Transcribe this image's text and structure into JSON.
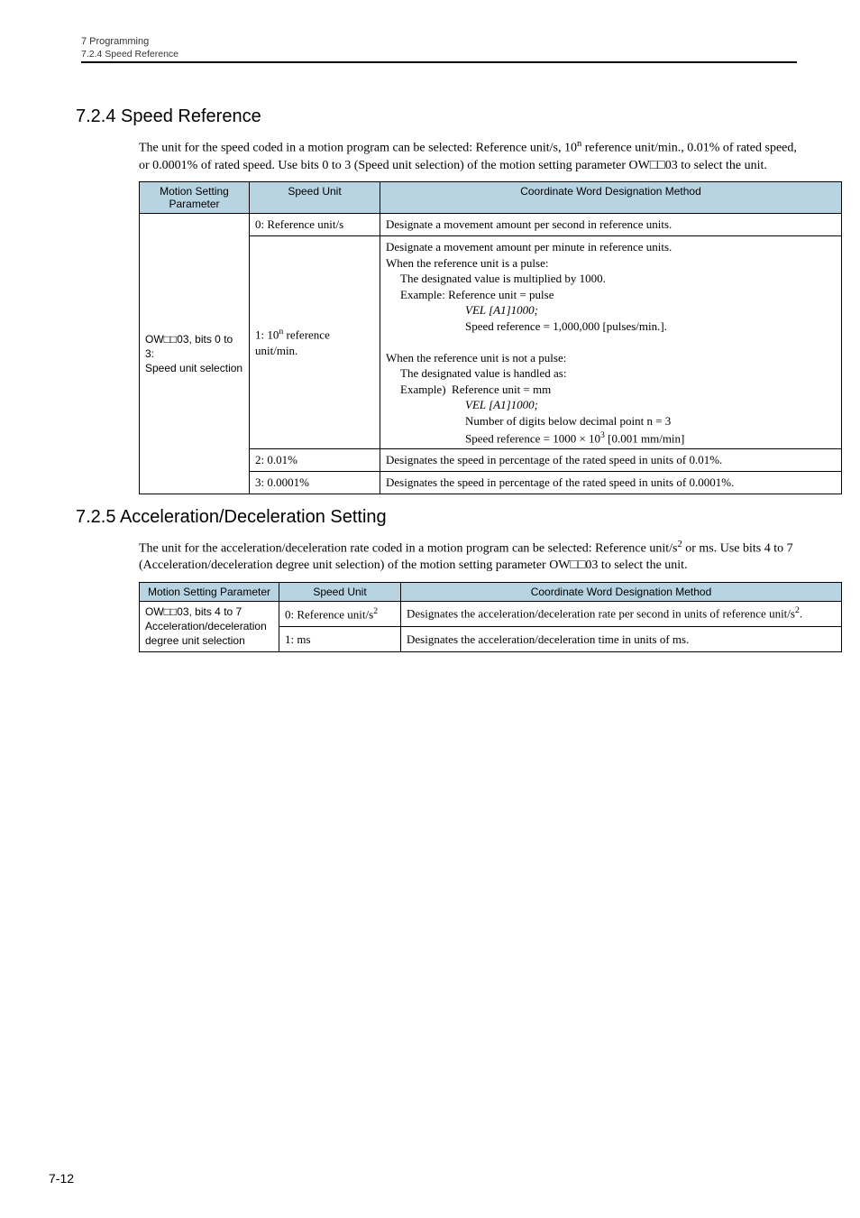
{
  "header": {
    "chapter": "7  Programming",
    "sub": "7.2.4  Speed Reference"
  },
  "section1": {
    "num": "7.2.4",
    "title": "Speed Reference",
    "para_html": "The unit for the speed coded in a motion program can be selected: Reference unit/s, 10<sup>n</sup> reference unit/min., 0.01% of rated speed, or 0.0001% of rated speed. Use bits 0 to 3 (Speed unit selection) of the motion setting parameter OW□□03 to select the unit."
  },
  "table1": {
    "headers": [
      "Motion Setting Parameter",
      "Speed Unit",
      "Coordinate Word Designation Method"
    ],
    "col1_html": "OW□□03, bits 0 to 3:<br>Speed unit selection",
    "rows": [
      {
        "unit": "0: Reference unit/s",
        "desc": "Designate a movement amount per second in reference units."
      },
      {
        "unit_html": "1: 10<sup>n</sup> reference unit/min.",
        "desc_lines": [
          {
            "t": "Designate a movement amount per minute in reference units.",
            "cls": ""
          },
          {
            "t": "When the reference unit is a pulse:",
            "cls": ""
          },
          {
            "t": "The designated value is multiplied by 1000.",
            "cls": "ind1"
          },
          {
            "t": "Example: Reference unit = pulse",
            "cls": "ind1"
          },
          {
            "t": "VEL [A1]1000;",
            "cls": "ind3 italic"
          },
          {
            "t": "Speed reference = 1,000,000 [pulses/min.].",
            "cls": "ind3"
          },
          {
            "t": " ",
            "cls": ""
          },
          {
            "t": "When the reference unit is not a pulse:",
            "cls": ""
          },
          {
            "t": "The designated value is handled as:",
            "cls": "ind1"
          },
          {
            "t": "Example)  Reference unit = mm",
            "cls": "ind1"
          },
          {
            "t": "VEL [A1]1000;",
            "cls": "ind3 italic"
          },
          {
            "t": "Number of digits below decimal point n = 3",
            "cls": "ind3"
          },
          {
            "html": "Speed reference = 1000 × 10<sup>3</sup> [0.001 mm/min]",
            "cls": "ind3"
          }
        ]
      },
      {
        "unit": "2: 0.01%",
        "desc": "Designates the speed in percentage of the rated speed in units of 0.01%."
      },
      {
        "unit": "3: 0.0001%",
        "desc": "Designates the speed in percentage of the rated speed in units of 0.0001%."
      }
    ]
  },
  "section2": {
    "num": "7.2.5",
    "title": "Acceleration/Deceleration Setting",
    "para_html": "The unit for the acceleration/deceleration rate coded in a motion program can be selected: Reference unit/s<sup>2</sup> or ms. Use bits 4 to 7 (Acceleration/deceleration degree unit selection) of the motion setting parameter OW□□03 to select the unit."
  },
  "table2": {
    "headers": [
      "Motion Setting Parameter",
      "Speed Unit",
      "Coordinate Word Designation Method"
    ],
    "col1_html": "OW□□03, bits 4 to 7<br>Acceleration/deceleration degree unit selection",
    "rows": [
      {
        "unit_html": "0: Reference unit/s<sup>2</sup>",
        "desc_html": "Designates the acceleration/deceleration rate per second in units of reference unit/s<sup>2</sup>."
      },
      {
        "unit": "1: ms",
        "desc": "Designates the acceleration/deceleration time in units of ms."
      }
    ]
  },
  "pagenum": "7-12"
}
